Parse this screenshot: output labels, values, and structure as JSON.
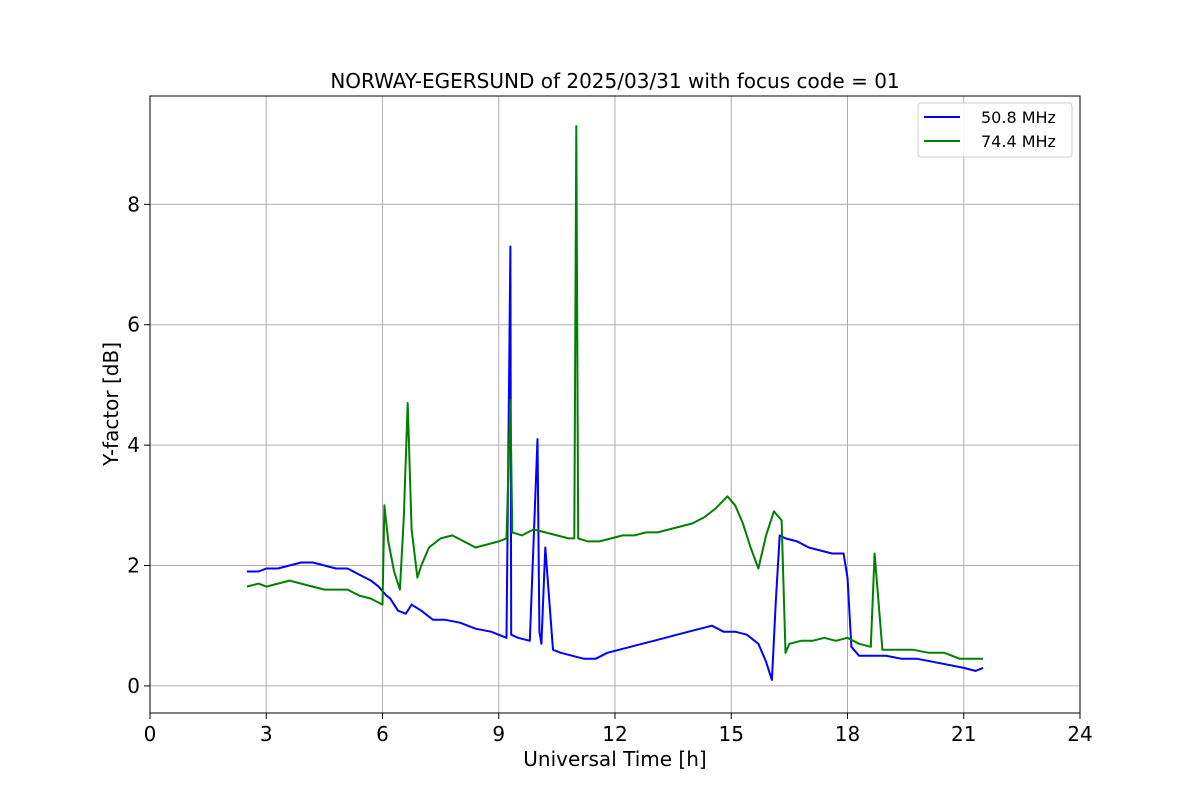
{
  "chart_data": {
    "type": "line",
    "title": "NORWAY-EGERSUND of 2025/03/31 with focus code = 01",
    "xlabel": "Universal Time [h]",
    "ylabel": "Y-factor [dB]",
    "xlim": [
      0,
      24
    ],
    "ylim": [
      -0.45,
      9.8
    ],
    "xticks": [
      0,
      3,
      6,
      9,
      12,
      15,
      18,
      21,
      24
    ],
    "yticks": [
      0,
      2,
      4,
      6,
      8
    ],
    "grid": true,
    "legend_position": "top-right",
    "series": [
      {
        "name": "50.8 MHz",
        "color": "#0000ff",
        "x": [
          2.5,
          2.8,
          3.0,
          3.3,
          3.6,
          3.9,
          4.2,
          4.5,
          4.8,
          5.1,
          5.4,
          5.7,
          5.9,
          6.1,
          6.2,
          6.4,
          6.6,
          6.75,
          7.0,
          7.3,
          7.6,
          8.0,
          8.4,
          8.8,
          9.2,
          9.3,
          9.32,
          9.5,
          9.8,
          10.0,
          10.05,
          10.1,
          10.2,
          10.4,
          10.6,
          10.9,
          11.2,
          11.5,
          11.8,
          12.1,
          12.4,
          12.7,
          13.0,
          13.3,
          13.6,
          13.9,
          14.2,
          14.5,
          14.8,
          15.1,
          15.4,
          15.7,
          15.9,
          16.05,
          16.15,
          16.25,
          16.4,
          16.7,
          17.0,
          17.3,
          17.6,
          17.9,
          18.0,
          18.1,
          18.3,
          18.7,
          19.0,
          19.4,
          19.8,
          20.2,
          20.6,
          21.0,
          21.3,
          21.5
        ],
        "values": [
          1.9,
          1.9,
          1.95,
          1.95,
          2.0,
          2.05,
          2.05,
          2.0,
          1.95,
          1.95,
          1.85,
          1.75,
          1.65,
          1.5,
          1.45,
          1.25,
          1.2,
          1.35,
          1.25,
          1.1,
          1.1,
          1.05,
          0.95,
          0.9,
          0.8,
          7.3,
          0.85,
          0.8,
          0.75,
          4.1,
          0.9,
          0.7,
          2.3,
          0.6,
          0.55,
          0.5,
          0.45,
          0.45,
          0.55,
          0.6,
          0.65,
          0.7,
          0.75,
          0.8,
          0.85,
          0.9,
          0.95,
          1.0,
          0.9,
          0.9,
          0.85,
          0.7,
          0.4,
          0.1,
          1.4,
          2.5,
          2.45,
          2.4,
          2.3,
          2.25,
          2.2,
          2.2,
          1.8,
          0.65,
          0.5,
          0.5,
          0.5,
          0.45,
          0.45,
          0.4,
          0.35,
          0.3,
          0.25,
          0.3
        ]
      },
      {
        "name": "74.4 MHz",
        "color": "#008000",
        "x": [
          2.5,
          2.8,
          3.0,
          3.3,
          3.6,
          3.9,
          4.2,
          4.5,
          4.8,
          5.1,
          5.4,
          5.7,
          6.0,
          6.05,
          6.15,
          6.3,
          6.45,
          6.55,
          6.65,
          6.75,
          6.9,
          7.0,
          7.2,
          7.5,
          7.8,
          8.1,
          8.4,
          8.7,
          9.0,
          9.2,
          9.3,
          9.35,
          9.6,
          9.9,
          10.2,
          10.5,
          10.8,
          10.95,
          11.0,
          11.05,
          11.3,
          11.6,
          11.9,
          12.2,
          12.5,
          12.8,
          13.1,
          13.4,
          13.7,
          14.0,
          14.3,
          14.6,
          14.9,
          15.1,
          15.3,
          15.5,
          15.7,
          15.9,
          16.1,
          16.3,
          16.4,
          16.5,
          16.8,
          17.1,
          17.4,
          17.7,
          18.0,
          18.3,
          18.6,
          18.7,
          18.9,
          19.3,
          19.7,
          20.1,
          20.5,
          20.9,
          21.3,
          21.5
        ],
        "values": [
          1.65,
          1.7,
          1.65,
          1.7,
          1.75,
          1.7,
          1.65,
          1.6,
          1.6,
          1.6,
          1.5,
          1.45,
          1.35,
          3.0,
          2.4,
          1.9,
          1.6,
          2.8,
          4.7,
          2.6,
          1.8,
          2.0,
          2.3,
          2.45,
          2.5,
          2.4,
          2.3,
          2.35,
          2.4,
          2.45,
          4.75,
          2.55,
          2.5,
          2.6,
          2.55,
          2.5,
          2.45,
          2.45,
          9.3,
          2.45,
          2.4,
          2.4,
          2.45,
          2.5,
          2.5,
          2.55,
          2.55,
          2.6,
          2.65,
          2.7,
          2.8,
          2.95,
          3.15,
          3.0,
          2.7,
          2.3,
          1.95,
          2.5,
          2.9,
          2.75,
          0.55,
          0.7,
          0.75,
          0.75,
          0.8,
          0.75,
          0.8,
          0.7,
          0.65,
          2.2,
          0.6,
          0.6,
          0.6,
          0.55,
          0.55,
          0.45,
          0.45,
          0.45
        ]
      }
    ]
  }
}
